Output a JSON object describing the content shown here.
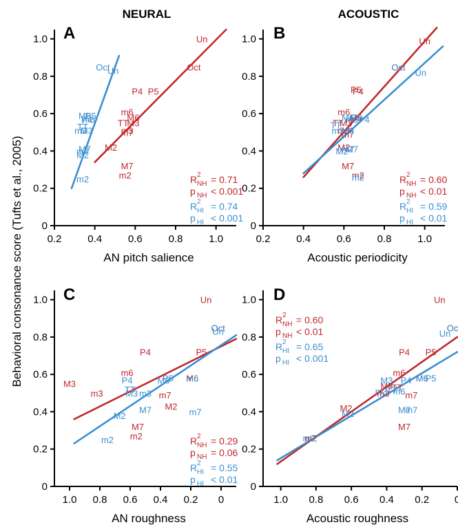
{
  "figure": {
    "col_titles": [
      "NEURAL",
      "ACOUSTIC"
    ],
    "ylabel": "Behavioral consonance score (Tufts et al., 2005)"
  },
  "colors": {
    "NH": "#c1272d",
    "HI": "#3a8fd0"
  },
  "chart_data": [
    {
      "letter": "A",
      "type": "scatter",
      "xlabel": "AN pitch salience",
      "xlim": [
        0.2,
        1.1
      ],
      "ylim": [
        0,
        1.05
      ],
      "reversed": false,
      "xticks": [
        0.2,
        0.4,
        0.6,
        0.8,
        1.0
      ],
      "xtick_labels": [
        "0.2",
        "0.4",
        "0.6",
        "0.8",
        "1.0"
      ],
      "yticks": [
        0,
        0.2,
        0.4,
        0.6,
        0.8,
        1.0
      ],
      "ytick_labels": [
        "0",
        "0.2",
        "0.4",
        "0.6",
        "0.8",
        "1.0"
      ],
      "series": [
        {
          "name": "NH",
          "color": "NH",
          "points": [
            {
              "label": "Un",
              "x": 0.93,
              "y": 1.0
            },
            {
              "label": "Oct",
              "x": 0.89,
              "y": 0.85
            },
            {
              "label": "P4",
              "x": 0.61,
              "y": 0.72
            },
            {
              "label": "P5",
              "x": 0.69,
              "y": 0.72
            },
            {
              "label": "m6",
              "x": 0.56,
              "y": 0.61
            },
            {
              "label": "M6",
              "x": 0.59,
              "y": 0.58
            },
            {
              "label": "TT",
              "x": 0.54,
              "y": 0.55
            },
            {
              "label": "M3",
              "x": 0.59,
              "y": 0.55
            },
            {
              "label": "m3",
              "x": 0.56,
              "y": 0.51
            },
            {
              "label": "m7",
              "x": 0.56,
              "y": 0.5
            },
            {
              "label": "M2",
              "x": 0.48,
              "y": 0.42
            },
            {
              "label": "M7",
              "x": 0.56,
              "y": 0.32
            },
            {
              "label": "m2",
              "x": 0.55,
              "y": 0.27
            }
          ],
          "fit": [
            [
              0.4,
              0.34
            ],
            [
              1.05,
              1.05
            ]
          ]
        },
        {
          "name": "HI",
          "color": "HI",
          "points": [
            {
              "label": "Oct",
              "x": 0.44,
              "y": 0.85
            },
            {
              "label": "Un",
              "x": 0.49,
              "y": 0.83
            },
            {
              "label": "M6",
              "x": 0.35,
              "y": 0.59
            },
            {
              "label": "P5",
              "x": 0.38,
              "y": 0.59
            },
            {
              "label": "m6",
              "x": 0.37,
              "y": 0.57
            },
            {
              "label": "P4",
              "x": 0.36,
              "y": 0.57
            },
            {
              "label": "TT",
              "x": 0.34,
              "y": 0.53
            },
            {
              "label": "m3",
              "x": 0.33,
              "y": 0.51
            },
            {
              "label": "M3",
              "x": 0.36,
              "y": 0.51
            },
            {
              "label": "M7",
              "x": 0.35,
              "y": 0.41
            },
            {
              "label": "m7",
              "x": 0.34,
              "y": 0.4
            },
            {
              "label": "M2",
              "x": 0.34,
              "y": 0.38
            },
            {
              "label": "m2",
              "x": 0.34,
              "y": 0.25
            }
          ],
          "fit": [
            [
              0.285,
              0.2
            ],
            [
              0.52,
              0.91
            ]
          ]
        }
      ],
      "stats": {
        "nh_r2": "= 0.71",
        "nh_p": "< 0.001",
        "hi_r2": "= 0.74",
        "hi_p": "< 0.001"
      }
    },
    {
      "letter": "B",
      "type": "scatter",
      "xlabel": "Acoustic periodicity",
      "xlim": [
        0.2,
        1.1
      ],
      "ylim": [
        0,
        1.05
      ],
      "reversed": false,
      "xticks": [
        0.2,
        0.4,
        0.6,
        0.8,
        1.0
      ],
      "xtick_labels": [
        "0.2",
        "0.4",
        "0.6",
        "0.8",
        "1.0"
      ],
      "yticks": [
        0,
        0.2,
        0.4,
        0.6,
        0.8,
        1.0
      ],
      "ytick_labels": [
        "0",
        "0.2",
        "0.4",
        "0.6",
        "0.8",
        "1.0"
      ],
      "series": [
        {
          "name": "NH",
          "color": "NH",
          "points": [
            {
              "label": "Un",
              "x": 1.0,
              "y": 0.99
            },
            {
              "label": "Oct",
              "x": 0.87,
              "y": 0.85
            },
            {
              "label": "P5",
              "x": 0.66,
              "y": 0.73
            },
            {
              "label": "P4",
              "x": 0.67,
              "y": 0.72
            },
            {
              "label": "m6",
              "x": 0.6,
              "y": 0.61
            },
            {
              "label": "M6",
              "x": 0.66,
              "y": 0.58
            },
            {
              "label": "TT",
              "x": 0.57,
              "y": 0.55
            },
            {
              "label": "M3",
              "x": 0.61,
              "y": 0.55
            },
            {
              "label": "m3",
              "x": 0.6,
              "y": 0.51
            },
            {
              "label": "m7",
              "x": 0.62,
              "y": 0.49
            },
            {
              "label": "M2",
              "x": 0.6,
              "y": 0.42
            },
            {
              "label": "M7",
              "x": 0.62,
              "y": 0.32
            },
            {
              "label": "m2",
              "x": 0.67,
              "y": 0.27
            }
          ],
          "fit": [
            [
              0.4,
              0.26
            ],
            [
              1.06,
              1.06
            ]
          ]
        },
        {
          "name": "HI",
          "color": "HI",
          "points": [
            {
              "label": "Oct",
              "x": 0.87,
              "y": 0.85
            },
            {
              "label": "Un",
              "x": 0.98,
              "y": 0.82
            },
            {
              "label": "M6",
              "x": 0.62,
              "y": 0.58
            },
            {
              "label": "P5",
              "x": 0.66,
              "y": 0.58
            },
            {
              "label": "P4",
              "x": 0.7,
              "y": 0.57
            },
            {
              "label": "m6",
              "x": 0.64,
              "y": 0.57
            },
            {
              "label": "TT",
              "x": 0.56,
              "y": 0.54
            },
            {
              "label": "m3",
              "x": 0.57,
              "y": 0.51
            },
            {
              "label": "M3",
              "x": 0.62,
              "y": 0.51
            },
            {
              "label": "m7",
              "x": 0.62,
              "y": 0.41
            },
            {
              "label": "M7",
              "x": 0.64,
              "y": 0.41
            },
            {
              "label": "M2",
              "x": 0.59,
              "y": 0.4
            },
            {
              "label": "m2",
              "x": 0.67,
              "y": 0.26
            }
          ],
          "fit": [
            [
              0.4,
              0.28
            ],
            [
              1.09,
              0.96
            ]
          ]
        }
      ],
      "stats": {
        "nh_r2": "= 0.60",
        "nh_p": "< 0.01",
        "hi_r2": "= 0.59",
        "hi_p": "< 0.01"
      }
    },
    {
      "letter": "C",
      "type": "scatter",
      "xlabel": "AN roughness",
      "xlim": [
        1.1,
        -0.1
      ],
      "ylim": [
        0,
        1.05
      ],
      "reversed": true,
      "xticks": [
        1.0,
        0.8,
        0.6,
        0.4,
        0.2,
        0
      ],
      "xtick_labels": [
        "1.0",
        "0.8",
        "0.6",
        "0.4",
        "0.2",
        "0"
      ],
      "yticks": [
        0,
        0.2,
        0.4,
        0.6,
        0.8,
        1.0
      ],
      "ytick_labels": [
        "0",
        "0.2",
        "0.4",
        "0.6",
        "0.8",
        "1.0"
      ],
      "series": [
        {
          "name": "NH",
          "color": "NH",
          "points": [
            {
              "label": "Un",
              "x": 0.1,
              "y": 1.0
            },
            {
              "label": "Oct",
              "x": 0.02,
              "y": 0.85
            },
            {
              "label": "P4",
              "x": 0.5,
              "y": 0.72
            },
            {
              "label": "P5",
              "x": 0.13,
              "y": 0.72
            },
            {
              "label": "m6",
              "x": 0.62,
              "y": 0.61
            },
            {
              "label": "M6",
              "x": 0.19,
              "y": 0.58
            },
            {
              "label": "M3",
              "x": 1.0,
              "y": 0.55
            },
            {
              "label": "m3",
              "x": 0.82,
              "y": 0.5
            },
            {
              "label": "TT",
              "x": 0.6,
              "y": 0.52
            },
            {
              "label": "m7",
              "x": 0.37,
              "y": 0.49
            },
            {
              "label": "M2",
              "x": 0.33,
              "y": 0.43
            },
            {
              "label": "M7",
              "x": 0.55,
              "y": 0.32
            },
            {
              "label": "m2",
              "x": 0.56,
              "y": 0.27
            }
          ],
          "fit": [
            [
              0.97,
              0.36
            ],
            [
              -0.1,
              0.79
            ]
          ]
        },
        {
          "name": "HI",
          "color": "HI",
          "points": [
            {
              "label": "Oct",
              "x": 0.02,
              "y": 0.85
            },
            {
              "label": "Un",
              "x": 0.02,
              "y": 0.83
            },
            {
              "label": "P4",
              "x": 0.62,
              "y": 0.57
            },
            {
              "label": "M6",
              "x": 0.38,
              "y": 0.57
            },
            {
              "label": "P5",
              "x": 0.35,
              "y": 0.58
            },
            {
              "label": "m6",
              "x": 0.19,
              "y": 0.58
            },
            {
              "label": "TT",
              "x": 0.6,
              "y": 0.52
            },
            {
              "label": "m3",
              "x": 0.5,
              "y": 0.5
            },
            {
              "label": "M3",
              "x": 0.59,
              "y": 0.5
            },
            {
              "label": "M7",
              "x": 0.5,
              "y": 0.41
            },
            {
              "label": "M2",
              "x": 0.67,
              "y": 0.38
            },
            {
              "label": "m7",
              "x": 0.17,
              "y": 0.4
            },
            {
              "label": "m2",
              "x": 0.75,
              "y": 0.25
            }
          ],
          "fit": [
            [
              0.97,
              0.23
            ],
            [
              -0.1,
              0.81
            ]
          ]
        }
      ],
      "stats": {
        "nh_r2": "= 0.29",
        "nh_p": "= 0.06",
        "hi_r2": "= 0.55",
        "hi_p": "< 0.01"
      }
    },
    {
      "letter": "D",
      "type": "scatter",
      "xlabel": "Acoustic roughness",
      "xlim": [
        1.1,
        0
      ],
      "ylim": [
        0,
        1.05
      ],
      "reversed": true,
      "xticks": [
        1.0,
        0.8,
        0.6,
        0.4,
        0.2,
        0
      ],
      "xtick_labels": [
        "1.0",
        "0.8",
        "0.6",
        "0.4",
        "0.2",
        "0"
      ],
      "yticks": [
        0,
        0.2,
        0.4,
        0.6,
        0.8,
        1.0
      ],
      "ytick_labels": [
        "0",
        "0.2",
        "0.4",
        "0.6",
        "0.8",
        "1.0"
      ],
      "series": [
        {
          "name": "NH",
          "color": "NH",
          "points": [
            {
              "label": "Un",
              "x": 0.1,
              "y": 1.0
            },
            {
              "label": "Oct",
              "x": 0.02,
              "y": 0.85
            },
            {
              "label": "P4",
              "x": 0.3,
              "y": 0.72
            },
            {
              "label": "P5",
              "x": 0.15,
              "y": 0.72
            },
            {
              "label": "m6",
              "x": 0.33,
              "y": 0.61
            },
            {
              "label": "M6",
              "x": 0.2,
              "y": 0.58
            },
            {
              "label": "M3",
              "x": 0.4,
              "y": 0.54
            },
            {
              "label": "TT",
              "x": 0.34,
              "y": 0.53
            },
            {
              "label": "m3",
              "x": 0.42,
              "y": 0.5
            },
            {
              "label": "m7",
              "x": 0.26,
              "y": 0.49
            },
            {
              "label": "M2",
              "x": 0.63,
              "y": 0.42
            },
            {
              "label": "M7",
              "x": 0.3,
              "y": 0.32
            },
            {
              "label": "m2",
              "x": 0.83,
              "y": 0.26
            }
          ],
          "fit": [
            [
              1.02,
              0.12
            ],
            [
              0,
              0.8
            ]
          ]
        },
        {
          "name": "HI",
          "color": "HI",
          "points": [
            {
              "label": "Oct",
              "x": 0.02,
              "y": 0.85
            },
            {
              "label": "Un",
              "x": 0.07,
              "y": 0.82
            },
            {
              "label": "M3",
              "x": 0.4,
              "y": 0.57
            },
            {
              "label": "P4",
              "x": 0.29,
              "y": 0.57
            },
            {
              "label": "M6",
              "x": 0.2,
              "y": 0.58
            },
            {
              "label": "P5",
              "x": 0.15,
              "y": 0.58
            },
            {
              "label": "m3",
              "x": 0.43,
              "y": 0.51
            },
            {
              "label": "TT",
              "x": 0.37,
              "y": 0.52
            },
            {
              "label": "m6",
              "x": 0.33,
              "y": 0.51
            },
            {
              "label": "M7",
              "x": 0.3,
              "y": 0.41
            },
            {
              "label": "m7",
              "x": 0.26,
              "y": 0.41
            },
            {
              "label": "M2",
              "x": 0.62,
              "y": 0.39
            },
            {
              "label": "m2",
              "x": 0.84,
              "y": 0.26
            }
          ],
          "fit": [
            [
              1.02,
              0.14
            ],
            [
              0,
              0.72
            ]
          ]
        }
      ],
      "stats": {
        "nh_r2": "= 0.60",
        "nh_p": "< 0.01",
        "hi_r2": "= 0.65",
        "hi_p": "< 0.001"
      }
    }
  ]
}
